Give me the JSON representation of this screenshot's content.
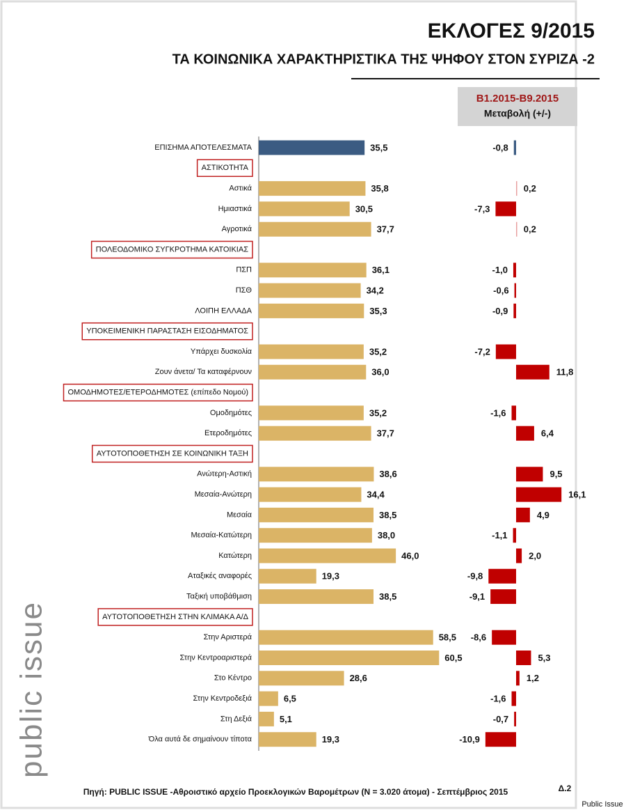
{
  "chart_data": {
    "type": "bar",
    "title": "ΕΚΛΟΓΕΣ 9/2015",
    "subtitle": "ΤΑ ΚΟΙΝΩΝΙΚΑ ΧΑΡΑΚΤΗΡΙΣΤΙΚΑ ΤΗΣ ΨΗΦΟΥ ΣΤΟΝ ΣΥΡΙΖΑ -2",
    "change_title": "Β1.2015-Β9.2015",
    "change_subtitle": "Μεταβολή (+/-)",
    "xlim": [
      0,
      70
    ],
    "change_xlim": [
      -20,
      20
    ],
    "color": "#dbb466",
    "total_color": "#3b5b82",
    "change_color": "#c00000",
    "total": {
      "category": "ΕΠΙΣΗΜΑ ΑΠΟΤΕΛΕΣΜΑΤΑ",
      "value": 35.5,
      "value_label": "35,5",
      "change": -0.8,
      "change_label": "-0,8"
    },
    "groups": [
      {
        "name": "ΑΣΤΙΚΟΤΗΤΑ",
        "categories": [
          "Αστικά",
          "Ημιαστικά",
          "Αγροτικά"
        ],
        "values": [
          35.8,
          30.5,
          37.7
        ],
        "value_labels": [
          "35,8",
          "30,5",
          "37,7"
        ],
        "changes": [
          0.2,
          -7.3,
          0.2
        ],
        "change_labels": [
          "0,2",
          "-7,3",
          "0,2"
        ]
      },
      {
        "name": "ΠΟΛΕΟΔΟΜΙΚΟ ΣΥΓΚΡΟΤΗΜΑ ΚΑΤΟΙΚΙΑΣ",
        "categories": [
          "ΠΣΠ",
          "ΠΣΘ",
          "ΛΟΙΠΗ ΕΛΛΑΔΑ"
        ],
        "values": [
          36.1,
          34.2,
          35.3
        ],
        "value_labels": [
          "36,1",
          "34,2",
          "35,3"
        ],
        "changes": [
          -1.0,
          -0.6,
          -0.9
        ],
        "change_labels": [
          "-1,0",
          "-0,6",
          "-0,9"
        ]
      },
      {
        "name": "ΥΠΟΚΕΙΜΕΝΙΚΗ ΠΑΡΑΣΤΑΣΗ ΕΙΣΟΔΗΜΑΤΟΣ",
        "categories": [
          "Υπάρχει δυσκολία",
          "Ζουν άνετα/ Τα καταφέρνουν"
        ],
        "values": [
          35.2,
          36.0
        ],
        "value_labels": [
          "35,2",
          "36,0"
        ],
        "changes": [
          -7.2,
          11.8
        ],
        "change_labels": [
          "-7,2",
          "11,8"
        ]
      },
      {
        "name": "ΟΜΟΔΗΜΟΤΕΣ/ΕΤΕΡΟΔΗΜΟΤΕΣ (επίπεδο Νομού)",
        "categories": [
          "Ομοδημότες",
          "Ετεροδημότες"
        ],
        "values": [
          35.2,
          37.7
        ],
        "value_labels": [
          "35,2",
          "37,7"
        ],
        "changes": [
          -1.6,
          6.4
        ],
        "change_labels": [
          "-1,6",
          "6,4"
        ]
      },
      {
        "name": "ΑΥΤΟΤΟΠΟΘΕΤΗΣΗ ΣΕ ΚΟΙΝΩΝΙΚΗ ΤΑΞΗ",
        "categories": [
          "Ανώτερη-Αστική",
          "Μεσαία-Ανώτερη",
          "Μεσαία",
          "Μεσαία-Κατώτερη",
          "Κατώτερη",
          "Αταξικές αναφορές",
          "Ταξική υποβάθμιση"
        ],
        "values": [
          38.6,
          34.4,
          38.5,
          38.0,
          46.0,
          19.3,
          38.5
        ],
        "value_labels": [
          "38,6",
          "34,4",
          "38,5",
          "38,0",
          "46,0",
          "19,3",
          "38,5"
        ],
        "changes": [
          9.5,
          16.1,
          4.9,
          -1.1,
          2.0,
          -9.8,
          -9.1
        ],
        "change_labels": [
          "9,5",
          "16,1",
          "4,9",
          "-1,1",
          "2,0",
          "-9,8",
          "-9,1"
        ]
      },
      {
        "name": "ΑΥΤΟΤΟΠΟΘΕΤΗΣΗ ΣΤΗΝ ΚΛΙΜΑΚΑ Α/Δ",
        "categories": [
          "Στην Αριστερά",
          "Στην Κεντροαριστερά",
          "Στο Κέντρο",
          "Στην Κεντροδεξιά",
          "Στη Δεξιά",
          "Όλα αυτά δε σημαίνουν τίποτα"
        ],
        "values": [
          58.5,
          60.5,
          28.6,
          6.5,
          5.1,
          19.3
        ],
        "value_labels": [
          "58,5",
          "60,5",
          "28,6",
          "6,5",
          "5,1",
          "19,3"
        ],
        "changes": [
          -8.6,
          5.3,
          1.2,
          -1.6,
          -0.7,
          -10.9
        ],
        "change_labels": [
          "-8,6",
          "5,3",
          "1,2",
          "-1,6",
          "-0,7",
          "-10,9"
        ]
      }
    ],
    "source": "Πηγή:  PUBLIC ISSUE -Αθροιστικό αρχείο Προεκλογικών Βαρομέτρων (N = 3.020 άτομα)  - Σεπτέμβριος 2015",
    "note": "Δ.2",
    "brand": "public issue",
    "credit": "Public Issue"
  }
}
